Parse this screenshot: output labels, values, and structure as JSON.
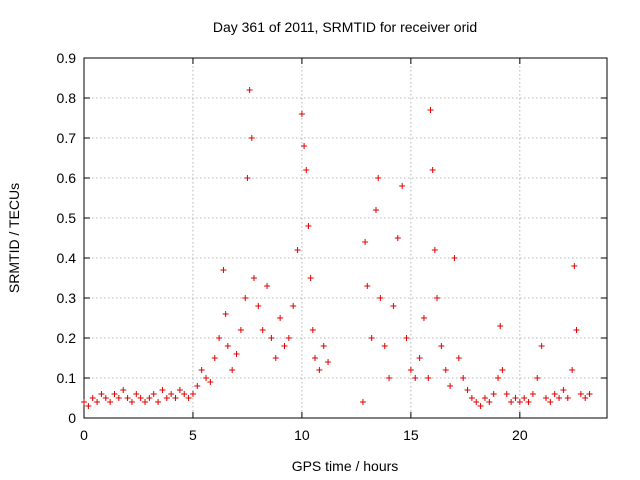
{
  "chart_data": {
    "type": "scatter",
    "title": "Day 361 of 2011, SRMTID for receiver orid",
    "xlabel": "GPS time / hours",
    "ylabel": "SRMTID / TECUs",
    "xlim": [
      0,
      24
    ],
    "ylim": [
      0,
      0.9
    ],
    "xticks": [
      0,
      5,
      10,
      15,
      20
    ],
    "xtick_labels": [
      "0",
      "5",
      "10",
      "15",
      "20"
    ],
    "yticks": [
      0,
      0.1,
      0.2,
      0.3,
      0.4,
      0.5,
      0.6,
      0.7,
      0.8,
      0.9
    ],
    "ytick_labels": [
      "0",
      "0.1",
      "0.2",
      "0.3",
      "0.4",
      "0.5",
      "0.6",
      "0.7",
      "0.8",
      "0.9"
    ],
    "grid": true,
    "marker": "+",
    "marker_color": "#e00000",
    "series": [
      {
        "name": "SRMTID",
        "x": [
          0.0,
          0.2,
          0.4,
          0.6,
          0.8,
          1.0,
          1.2,
          1.4,
          1.6,
          1.8,
          2.0,
          2.2,
          2.4,
          2.6,
          2.8,
          3.0,
          3.2,
          3.4,
          3.6,
          3.8,
          4.0,
          4.2,
          4.4,
          4.6,
          4.8,
          5.0,
          5.2,
          5.4,
          5.6,
          5.8,
          6.0,
          6.2,
          6.4,
          6.5,
          6.6,
          6.8,
          7.0,
          7.2,
          7.4,
          7.5,
          7.6,
          7.7,
          7.8,
          8.0,
          8.2,
          8.4,
          8.6,
          8.8,
          9.0,
          9.2,
          9.4,
          9.6,
          9.8,
          10.0,
          10.1,
          10.2,
          10.3,
          10.4,
          10.5,
          10.6,
          10.8,
          11.0,
          11.2,
          12.8,
          12.9,
          13.0,
          13.2,
          13.4,
          13.5,
          13.6,
          13.8,
          14.0,
          14.2,
          14.4,
          14.6,
          14.8,
          15.0,
          15.2,
          15.4,
          15.6,
          15.8,
          15.9,
          16.0,
          16.1,
          16.2,
          16.4,
          16.6,
          16.8,
          17.0,
          17.2,
          17.4,
          17.6,
          17.8,
          18.0,
          18.2,
          18.4,
          18.6,
          18.8,
          19.0,
          19.1,
          19.2,
          19.4,
          19.6,
          19.8,
          20.0,
          20.2,
          20.4,
          20.6,
          20.8,
          21.0,
          21.2,
          21.4,
          21.6,
          21.8,
          22.0,
          22.2,
          22.4,
          22.5,
          22.6,
          22.8,
          23.0,
          23.2
        ],
        "y": [
          0.04,
          0.03,
          0.05,
          0.04,
          0.06,
          0.05,
          0.04,
          0.06,
          0.05,
          0.07,
          0.05,
          0.04,
          0.06,
          0.05,
          0.04,
          0.05,
          0.06,
          0.04,
          0.07,
          0.05,
          0.06,
          0.05,
          0.07,
          0.06,
          0.05,
          0.06,
          0.08,
          0.12,
          0.1,
          0.09,
          0.15,
          0.2,
          0.37,
          0.26,
          0.18,
          0.12,
          0.16,
          0.22,
          0.3,
          0.6,
          0.82,
          0.7,
          0.35,
          0.28,
          0.22,
          0.33,
          0.2,
          0.15,
          0.25,
          0.18,
          0.2,
          0.28,
          0.42,
          0.76,
          0.68,
          0.62,
          0.48,
          0.35,
          0.22,
          0.15,
          0.12,
          0.18,
          0.14,
          0.04,
          0.44,
          0.33,
          0.2,
          0.52,
          0.6,
          0.3,
          0.18,
          0.1,
          0.28,
          0.45,
          0.58,
          0.2,
          0.12,
          0.1,
          0.15,
          0.25,
          0.1,
          0.77,
          0.62,
          0.42,
          0.3,
          0.18,
          0.12,
          0.08,
          0.4,
          0.15,
          0.1,
          0.07,
          0.05,
          0.04,
          0.03,
          0.05,
          0.04,
          0.06,
          0.1,
          0.23,
          0.12,
          0.06,
          0.04,
          0.05,
          0.04,
          0.05,
          0.04,
          0.06,
          0.1,
          0.18,
          0.05,
          0.04,
          0.06,
          0.05,
          0.07,
          0.05,
          0.12,
          0.38,
          0.22,
          0.06,
          0.05,
          0.06
        ]
      }
    ]
  }
}
